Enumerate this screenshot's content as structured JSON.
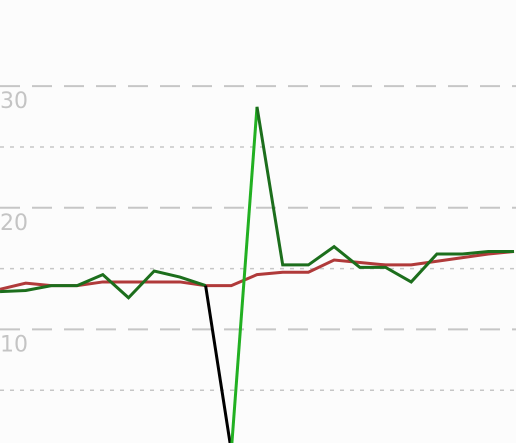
{
  "chart_data": {
    "type": "line",
    "title": "",
    "xlabel": "",
    "ylabel": "",
    "grid": true,
    "xlim": [
      0,
      20
    ],
    "ylim": [
      0,
      33.3
    ],
    "major_ticks": [
      10,
      20,
      30
    ],
    "minor_ticks": [
      5,
      15,
      25
    ],
    "tick_labels": [
      "10",
      "20",
      "30"
    ],
    "series": [
      {
        "color": "#b03a3a",
        "points": [
          [
            0,
            13.3
          ],
          [
            1,
            13.8
          ],
          [
            2,
            13.6
          ],
          [
            3,
            13.6
          ],
          [
            4,
            13.9
          ],
          [
            5,
            13.9
          ],
          [
            6,
            13.9
          ],
          [
            7,
            13.9
          ],
          [
            8,
            13.6
          ],
          [
            9,
            13.6
          ],
          [
            10,
            14.5
          ],
          [
            11,
            14.7
          ],
          [
            12,
            14.7
          ],
          [
            13,
            15.7
          ],
          [
            14,
            15.5
          ],
          [
            15,
            15.3
          ],
          [
            16,
            15.3
          ],
          [
            17,
            15.6
          ],
          [
            18,
            15.9
          ],
          [
            19,
            16.2
          ],
          [
            20,
            16.4
          ]
        ]
      },
      {
        "color": "#1c6e1c",
        "points": [
          [
            0,
            13.1
          ],
          [
            1,
            13.2
          ],
          [
            2,
            13.6
          ],
          [
            3,
            13.6
          ],
          [
            4,
            14.5
          ],
          [
            5,
            12.6
          ],
          [
            6,
            14.8
          ],
          [
            7,
            14.3
          ],
          [
            8,
            13.6
          ]
        ]
      },
      {
        "color": "#000000",
        "points": [
          [
            8,
            13.6
          ],
          [
            9,
            0
          ]
        ]
      },
      {
        "color": "#22b022",
        "points": [
          [
            9,
            0
          ],
          [
            10,
            28.3
          ]
        ]
      },
      {
        "color": "#1c6e1c",
        "points": [
          [
            10,
            28.3
          ],
          [
            11,
            15.3
          ],
          [
            12,
            15.3
          ],
          [
            13,
            16.8
          ],
          [
            14,
            15.1
          ],
          [
            15,
            15.1
          ],
          [
            16,
            13.9
          ],
          [
            17,
            16.2
          ],
          [
            18,
            16.2
          ],
          [
            19,
            16.4
          ],
          [
            20,
            16.4
          ]
        ]
      }
    ]
  }
}
